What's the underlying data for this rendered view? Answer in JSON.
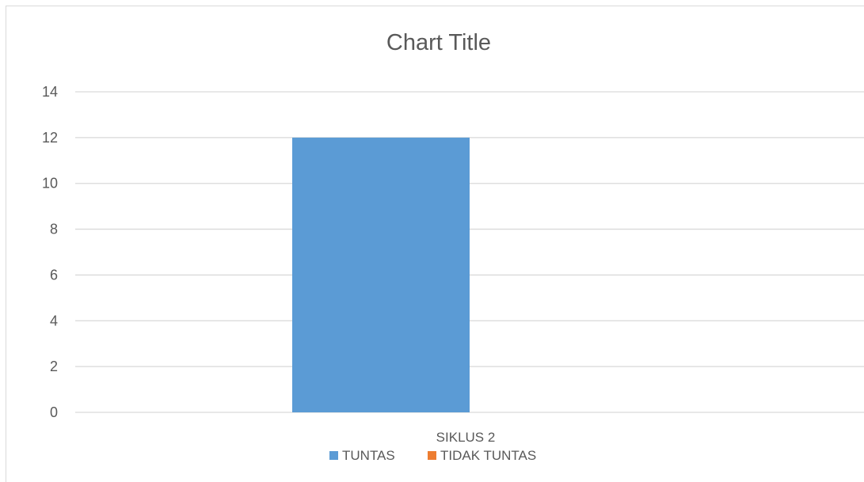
{
  "chart_data": {
    "type": "bar",
    "title": "Chart Title",
    "categories": [
      "SIKLUS 2"
    ],
    "series": [
      {
        "name": "TUNTAS",
        "values": [
          12
        ],
        "color": "#5b9bd5"
      },
      {
        "name": "TIDAK TUNTAS",
        "values": [
          0
        ],
        "color": "#ed7d31"
      }
    ],
    "ylim": [
      0,
      14
    ],
    "yticks": [
      0,
      2,
      4,
      6,
      8,
      10,
      12,
      14
    ],
    "xlabel": "",
    "ylabel": "",
    "grid": true,
    "legend": "bottom"
  }
}
